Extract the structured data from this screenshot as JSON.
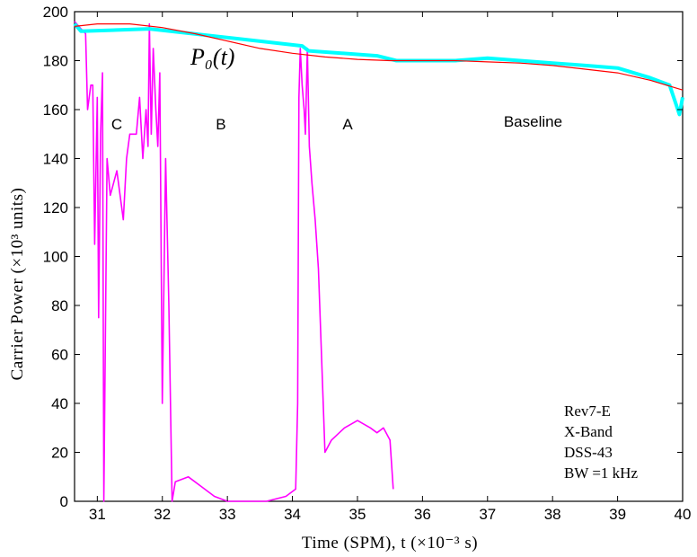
{
  "chart_data": {
    "type": "line",
    "title": "",
    "xlabel": "Time (SPM), t (×10⁻³ s)",
    "ylabel": "Carrier Power (×10³ units)",
    "xlim": [
      30.65,
      40
    ],
    "ylim": [
      0,
      200
    ],
    "x_ticks": [
      31,
      32,
      33,
      34,
      35,
      36,
      37,
      38,
      39,
      40
    ],
    "y_ticks": [
      0,
      20,
      40,
      60,
      80,
      100,
      120,
      140,
      160,
      180,
      200
    ],
    "grid": false,
    "colors": {
      "occulted": "#ff00ff",
      "baseline": "#00ffff",
      "fit": "#ff0000",
      "axes": "#000000"
    },
    "annotations": {
      "curve_label": "P₀(t)",
      "regions": [
        {
          "label": "C",
          "x": 31.3,
          "y": 152
        },
        {
          "label": "B",
          "x": 32.9,
          "y": 152
        },
        {
          "label": "A",
          "x": 34.85,
          "y": 152
        },
        {
          "label": "Baseline",
          "x": 37.7,
          "y": 153
        }
      ],
      "info": [
        "Rev7-E",
        "X-Band",
        "DSS-43",
        "BW =1 kHz"
      ]
    },
    "series": [
      {
        "role": "occulted",
        "x": [
          30.65,
          30.75,
          30.82,
          30.85,
          30.9,
          30.93,
          30.96,
          31.0,
          31.02,
          31.05,
          31.08,
          31.1,
          31.15,
          31.2,
          31.3,
          31.4,
          31.45,
          31.5,
          31.6,
          31.65,
          31.7,
          31.75,
          31.78,
          31.8,
          31.83,
          31.86,
          31.9,
          31.93,
          31.96,
          32.0,
          32.05,
          32.1,
          32.15,
          32.2,
          32.4,
          32.6,
          32.8,
          33.0,
          33.3,
          33.6,
          33.9,
          34.05,
          34.08,
          34.1,
          34.12,
          34.15,
          34.18,
          34.2,
          34.23,
          34.26,
          34.3,
          34.35,
          34.4,
          34.5,
          34.6,
          34.8,
          35.0,
          35.2,
          35.3,
          35.4,
          35.5,
          35.55
        ],
        "values": [
          196,
          193,
          191,
          160,
          170,
          170,
          105,
          165,
          75,
          150,
          175,
          0,
          140,
          125,
          135,
          115,
          140,
          150,
          150,
          165,
          140,
          160,
          145,
          195,
          150,
          185,
          160,
          145,
          175,
          40,
          140,
          80,
          0,
          8,
          10,
          6,
          2,
          0,
          0,
          0,
          2,
          5,
          40,
          165,
          185,
          170,
          160,
          150,
          185,
          145,
          130,
          115,
          95,
          20,
          25,
          30,
          33,
          30,
          28,
          30,
          25,
          5
        ]
      },
      {
        "role": "baseline",
        "x": [
          30.65,
          30.75,
          31.8,
          34.15,
          34.25,
          35.3,
          35.6,
          36.0,
          36.5,
          37.0,
          37.5,
          38.0,
          38.5,
          39.0,
          39.5,
          39.8,
          39.9,
          39.95,
          40.0
        ],
        "values": [
          195,
          192,
          193,
          186,
          184,
          182,
          180,
          180,
          180,
          181,
          180,
          179,
          178,
          177,
          173,
          170,
          162,
          158,
          165
        ]
      },
      {
        "role": "fit",
        "x": [
          30.65,
          31.0,
          31.5,
          32.0,
          32.5,
          33.0,
          33.5,
          34.0,
          34.5,
          35.0,
          35.5,
          36.0,
          36.5,
          37.0,
          37.5,
          38.0,
          38.5,
          39.0,
          39.5,
          40.0
        ],
        "values": [
          194,
          195,
          195,
          193.5,
          191,
          188,
          185,
          183,
          181.5,
          180.5,
          180,
          180,
          180,
          179.5,
          179,
          178,
          176.5,
          175,
          172,
          168
        ]
      }
    ]
  }
}
